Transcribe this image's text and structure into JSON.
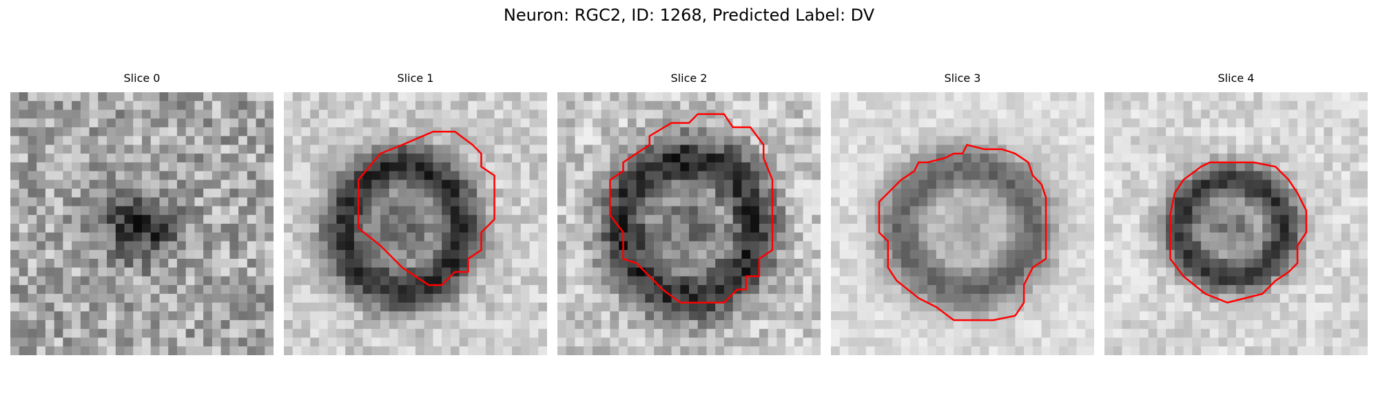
{
  "figure": {
    "title": "Neuron: RGC2, ID: 1268, Predicted Label: DV"
  },
  "colors": {
    "contour": "#ff0000",
    "background": "#ffffff"
  },
  "panels": [
    {
      "title": "Slice 0",
      "has_contour": false
    },
    {
      "title": "Slice 1",
      "has_contour": true
    },
    {
      "title": "Slice 2",
      "has_contour": true
    },
    {
      "title": "Slice 3",
      "has_contour": true
    },
    {
      "title": "Slice 4",
      "has_contour": true
    }
  ]
}
